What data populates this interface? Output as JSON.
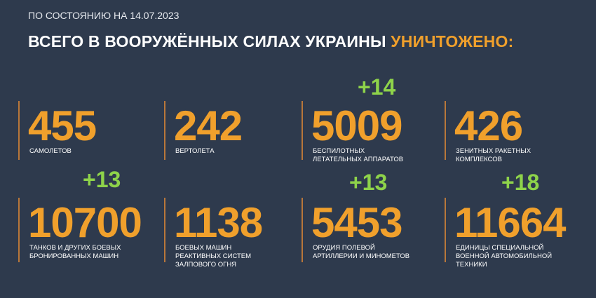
{
  "header": {
    "date": "ПО СОСТОЯНИЮ НА 14.07.2023",
    "title": "ВСЕГО В ВООРУЖЁННЫХ СИЛАХ УКРАИНЫ",
    "highlight": "УНИЧТОЖЕНО:"
  },
  "items": [
    {
      "value": 455,
      "label": [
        "САМОЛЕТОВ"
      ]
    },
    {
      "value": 242,
      "label": [
        "ВЕРТОЛЕТА"
      ]
    },
    {
      "value": 5009,
      "delta": "+14",
      "label": [
        "БЕСПИЛОТНЫХ",
        "ЛЕТАТЕЛЬНЫХ АППАРАТОВ"
      ]
    },
    {
      "value": 426,
      "label": [
        "ЗЕНИТНЫХ РАКЕТНЫХ",
        "КОМПЛЕКСОВ"
      ]
    },
    {
      "value": 10700,
      "delta": "+13",
      "label": [
        "ТАНКОВ И ДРУГИХ БОЕВЫХ",
        "БРОНИРОВАННЫХ МАШИН"
      ]
    },
    {
      "value": 1138,
      "label": [
        "БОЕВЫХ МАШИН",
        "РЕАКТИВНЫХ СИСТЕМ",
        "ЗАЛПОВОГО ОГНЯ"
      ]
    },
    {
      "value": 5453,
      "delta": "+13",
      "label": [
        "ОРУДИЯ ПОЛЕВОЙ",
        "АРТИЛЛЕРИИ И МИНОМЕТОВ"
      ]
    },
    {
      "value": 11664,
      "delta": "+18",
      "label": [
        "ЕДИНИЦЫ СПЕЦИАЛЬНОЙ",
        "ВОЕННОЙ АВТОМОБИЛЬНОЙ",
        "ТЕХНИКИ"
      ]
    }
  ]
}
